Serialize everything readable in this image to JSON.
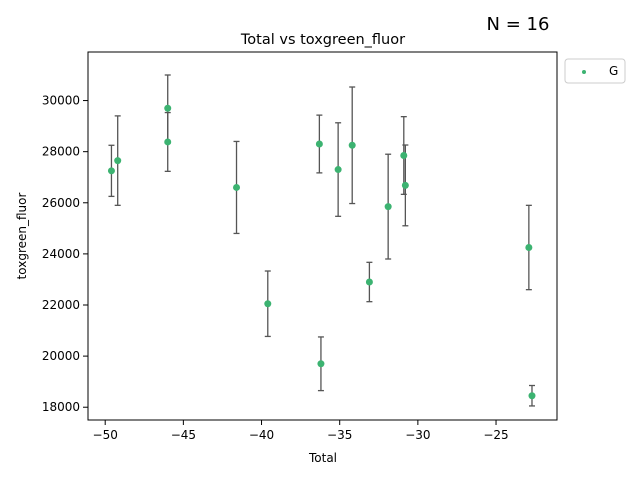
{
  "annotation": "N = 16",
  "chart_data": {
    "type": "scatter",
    "title": "Total vs toxgreen_fluor",
    "xlabel": "Total",
    "ylabel": "toxgreen_fluor",
    "xlim": [
      -51.1,
      -21.1
    ],
    "ylim": [
      17500,
      31900
    ],
    "xticks": [
      -50,
      -45,
      -40,
      -35,
      -30,
      -25
    ],
    "yticks": [
      18000,
      20000,
      22000,
      24000,
      26000,
      28000,
      30000
    ],
    "grid": false,
    "legend_position": "outside-top-right",
    "colors": {
      "point": "#3cb371",
      "errorbar": "#555555"
    },
    "series": [
      {
        "name": "G",
        "points": [
          {
            "x": -49.6,
            "y": 27250,
            "err": 1000
          },
          {
            "x": -49.2,
            "y": 27650,
            "err": 1750
          },
          {
            "x": -46.0,
            "y": 29700,
            "err": 1300
          },
          {
            "x": -46.0,
            "y": 28380,
            "err": 1150
          },
          {
            "x": -41.6,
            "y": 26600,
            "err": 1800
          },
          {
            "x": -39.6,
            "y": 22050,
            "err": 1280
          },
          {
            "x": -36.3,
            "y": 28300,
            "err": 1130
          },
          {
            "x": -36.2,
            "y": 19700,
            "err": 1050
          },
          {
            "x": -35.1,
            "y": 27300,
            "err": 1830
          },
          {
            "x": -34.2,
            "y": 28250,
            "err": 2280
          },
          {
            "x": -33.1,
            "y": 22900,
            "err": 770
          },
          {
            "x": -31.9,
            "y": 25850,
            "err": 2050
          },
          {
            "x": -30.9,
            "y": 27850,
            "err": 1520
          },
          {
            "x": -30.8,
            "y": 26680,
            "err": 1580
          },
          {
            "x": -22.9,
            "y": 24250,
            "err": 1650
          },
          {
            "x": -22.7,
            "y": 18450,
            "err": 400
          }
        ]
      }
    ]
  }
}
